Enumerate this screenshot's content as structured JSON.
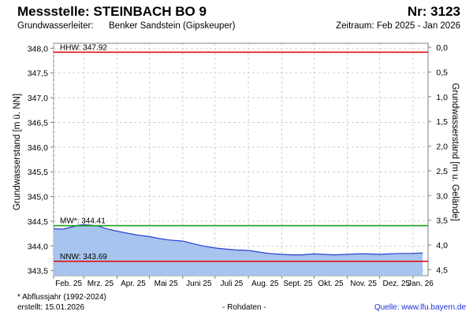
{
  "header": {
    "station": "Messstelle: STEINBACH BO 9",
    "number": "Nr: 3123",
    "aquifer_label": "Grundwasserleiter:",
    "aquifer_value": "Benker Sandstein (Gipskeuper)",
    "period": "Zeitraum: Feb 2025 - Jan 2026"
  },
  "footer": {
    "note": "* Abflussjahr (1992-2024)",
    "created": "erstellt:  15.01.2026",
    "raw": "- Rohdaten -",
    "source": "Quelle:  www.lfu.bayern.de"
  },
  "colors": {
    "hhw_line": "#e01010",
    "nnw_line": "#e01010",
    "mw_line": "#18a018",
    "series_line": "#2a3fd0",
    "series_fill": "#a6c4ee",
    "grid": "#c8c8c8"
  },
  "chart_data": {
    "type": "area",
    "ylabel": "Grundwasserstand [m ü. NN]",
    "ylabel_right": "Grundwasserstand [m u. Gelände]",
    "ylim": [
      343.4,
      348.1
    ],
    "yticks": [
      "348,0",
      "347,5",
      "347,0",
      "346,5",
      "346,0",
      "345,5",
      "345,0",
      "344,5",
      "344,0",
      "343,5"
    ],
    "ytick_values": [
      348.0,
      347.5,
      347.0,
      346.5,
      346.0,
      345.5,
      345.0,
      344.5,
      344.0,
      343.5
    ],
    "right_ylim": [
      -0.08,
      4.62
    ],
    "right_yticks": [
      "0,0",
      "0,5",
      "1,0",
      "1,5",
      "2,0",
      "2,5",
      "3,0",
      "3,5",
      "4,0",
      "4,5"
    ],
    "right_ytick_values": [
      0.0,
      0.5,
      1.0,
      1.5,
      2.0,
      2.5,
      3.0,
      3.5,
      4.0,
      4.5
    ],
    "x_range": [
      "2025-02-01",
      "2026-01-15"
    ],
    "xticks": [
      "Feb. 25",
      "Mrz. 25",
      "Apr. 25",
      "Mai 25",
      "Juni 25",
      "Juli 25",
      "Aug. 25",
      "Sept. 25",
      "Okt. 25",
      "Nov. 25",
      "Dez. 25",
      "Jan. 26"
    ],
    "xtick_dates": [
      "2025-02-01",
      "2025-03-01",
      "2025-04-01",
      "2025-05-01",
      "2025-06-01",
      "2025-07-01",
      "2025-08-01",
      "2025-09-01",
      "2025-10-01",
      "2025-11-01",
      "2025-12-01",
      "2026-01-01"
    ],
    "reference_lines": [
      {
        "label": "HHW: 347.92",
        "value": 347.92
      },
      {
        "label": "MW*: 344.41",
        "value": 344.41
      },
      {
        "label": "NNW: 343.69",
        "value": 343.69
      }
    ],
    "series": [
      {
        "x": [
          "2025-02-01",
          "2025-02-10",
          "2025-02-17",
          "2025-02-24",
          "2025-03-01",
          "2025-03-08",
          "2025-03-15",
          "2025-03-22",
          "2025-04-01",
          "2025-04-10",
          "2025-04-20",
          "2025-05-01",
          "2025-05-10",
          "2025-05-20",
          "2025-06-01",
          "2025-06-10",
          "2025-06-20",
          "2025-07-01",
          "2025-07-10",
          "2025-07-20",
          "2025-08-01",
          "2025-08-10",
          "2025-08-20",
          "2025-09-01",
          "2025-09-10",
          "2025-09-20",
          "2025-10-01",
          "2025-10-10",
          "2025-10-20",
          "2025-11-01",
          "2025-11-10",
          "2025-11-20",
          "2025-12-01",
          "2025-12-10",
          "2025-12-20",
          "2026-01-01",
          "2026-01-10"
        ],
        "values": [
          344.35,
          344.34,
          344.38,
          344.42,
          344.43,
          344.42,
          344.4,
          344.35,
          344.3,
          344.26,
          344.22,
          344.19,
          344.15,
          344.12,
          344.1,
          344.05,
          344.0,
          343.96,
          343.94,
          343.92,
          343.91,
          343.88,
          343.85,
          343.83,
          343.82,
          343.82,
          343.84,
          343.83,
          343.82,
          343.83,
          343.84,
          343.84,
          343.83,
          343.84,
          343.85,
          343.85,
          343.86
        ]
      }
    ],
    "grid": true
  }
}
